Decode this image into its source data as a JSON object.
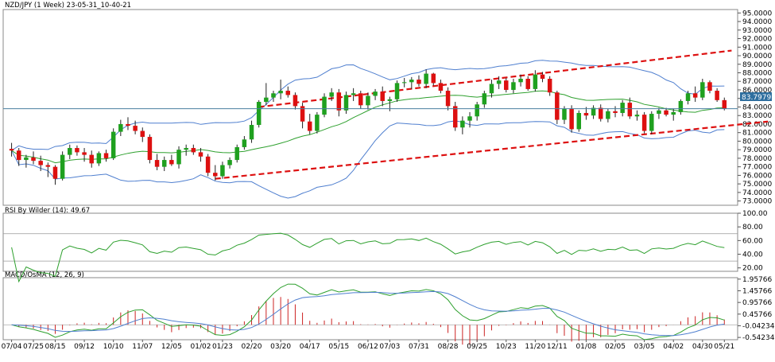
{
  "header": {
    "main_title": "NZD/JPY (1 Week) 23-05-31_10-40-21",
    "rsi_title": "RSI By Wilder (14): 49.67",
    "macd_title": "MACD/OsMA (12, 26, 9)",
    "current_price_label": "83.7979"
  },
  "colors": {
    "bull_candle": "#1fa01f",
    "bear_candle": "#dd1010",
    "bollinger": "#4f7fcf",
    "bollinger_mid": "#2ea02e",
    "trendline": "#dd1010",
    "price_line": "#4a7fa0",
    "rsi_line": "#2ea02e",
    "macd_line": "#2ea02e",
    "signal_line": "#4f7fcf",
    "histogram": "#cc2222"
  },
  "chart_data": [
    {
      "type": "candlestick",
      "y_ticks": [
        "95.0000",
        "94.0000",
        "93.0000",
        "92.0000",
        "91.0000",
        "90.0000",
        "89.0000",
        "88.0000",
        "87.0000",
        "86.0000",
        "85.0000",
        "84.0000",
        "83.0000",
        "82.0000",
        "81.0000",
        "80.0000",
        "79.0000",
        "78.0000",
        "77.0000",
        "76.0000",
        "75.0000",
        "74.0000",
        "73.0000"
      ],
      "ylim": [
        72.5,
        95.4
      ],
      "current_price": 83.7979,
      "x_tick_labels": [
        "07/04",
        "07/25",
        "08/15",
        "09/12",
        "10/10",
        "11/07",
        "12/05",
        "01/02",
        "01/23",
        "02/20",
        "03/20",
        "04/17",
        "05/15",
        "06/12",
        "07/03",
        "07/31",
        "08/28",
        "09/25",
        "10/23",
        "11/20",
        "12/11",
        "01/08",
        "02/05",
        "03/05",
        "04/02",
        "04/30",
        "05/21"
      ],
      "x_tick_index": [
        0,
        3,
        6,
        10,
        14,
        18,
        22,
        26,
        29,
        33,
        37,
        41,
        45,
        49,
        52,
        56,
        60,
        64,
        68,
        72,
        75,
        79,
        83,
        87,
        91,
        95,
        98
      ],
      "candles": [
        [
          79.1,
          79.8,
          78.2,
          78.9
        ],
        [
          78.9,
          79.2,
          77.1,
          77.8
        ],
        [
          77.8,
          78.4,
          76.9,
          78.1
        ],
        [
          78.1,
          78.8,
          77.3,
          77.7
        ],
        [
          77.7,
          78.3,
          76.5,
          77.2
        ],
        [
          77.2,
          77.5,
          75.8,
          77.0
        ],
        [
          77.0,
          77.2,
          74.9,
          75.6
        ],
        [
          75.6,
          78.8,
          75.4,
          78.4
        ],
        [
          78.4,
          79.6,
          77.9,
          79.2
        ],
        [
          79.2,
          79.5,
          78.3,
          78.7
        ],
        [
          78.7,
          79.2,
          77.6,
          78.4
        ],
        [
          78.4,
          78.9,
          76.9,
          77.4
        ],
        [
          77.4,
          78.8,
          77.1,
          78.6
        ],
        [
          78.6,
          79.0,
          77.6,
          78.0
        ],
        [
          78.0,
          81.5,
          77.8,
          81.1
        ],
        [
          81.1,
          82.5,
          80.6,
          82.0
        ],
        [
          82.0,
          82.8,
          81.3,
          81.8
        ],
        [
          81.8,
          82.4,
          80.8,
          81.2
        ],
        [
          81.2,
          81.6,
          79.9,
          80.5
        ],
        [
          80.5,
          80.8,
          77.4,
          77.8
        ],
        [
          77.8,
          78.5,
          76.6,
          77.0
        ],
        [
          77.0,
          78.2,
          76.5,
          77.8
        ],
        [
          77.8,
          78.4,
          77.1,
          77.3
        ],
        [
          77.3,
          79.4,
          76.8,
          79.0
        ],
        [
          79.0,
          79.6,
          78.3,
          79.2
        ],
        [
          79.2,
          79.6,
          78.4,
          78.7
        ],
        [
          78.7,
          79.2,
          77.6,
          78.2
        ],
        [
          78.2,
          78.5,
          75.9,
          76.3
        ],
        [
          76.3,
          77.2,
          75.4,
          75.9
        ],
        [
          75.9,
          77.6,
          75.6,
          77.2
        ],
        [
          77.2,
          78.1,
          76.8,
          77.8
        ],
        [
          77.8,
          79.6,
          77.5,
          79.3
        ],
        [
          79.3,
          80.6,
          79.0,
          80.2
        ],
        [
          80.2,
          82.4,
          79.8,
          81.9
        ],
        [
          81.9,
          84.8,
          81.6,
          84.6
        ],
        [
          84.6,
          86.8,
          84.2,
          85.1
        ],
        [
          85.1,
          85.9,
          84.6,
          85.6
        ],
        [
          85.6,
          87.2,
          84.9,
          85.9
        ],
        [
          85.9,
          86.4,
          85.1,
          85.4
        ],
        [
          85.4,
          85.7,
          83.7,
          84.1
        ],
        [
          84.1,
          84.5,
          81.5,
          82.3
        ],
        [
          82.3,
          83.2,
          80.8,
          81.2
        ],
        [
          81.2,
          83.4,
          80.9,
          83.1
        ],
        [
          83.1,
          85.6,
          82.8,
          85.2
        ],
        [
          85.2,
          86.2,
          84.7,
          85.7
        ],
        [
          85.7,
          86.1,
          82.9,
          83.6
        ],
        [
          83.6,
          85.8,
          83.2,
          85.4
        ],
        [
          85.4,
          86.2,
          84.7,
          85.6
        ],
        [
          85.6,
          85.9,
          83.8,
          84.2
        ],
        [
          84.2,
          85.7,
          83.7,
          85.3
        ],
        [
          85.3,
          86.1,
          84.8,
          85.8
        ],
        [
          85.8,
          86.4,
          84.1,
          84.7
        ],
        [
          84.7,
          85.2,
          83.5,
          84.9
        ],
        [
          84.9,
          87.1,
          84.6,
          86.8
        ],
        [
          86.8,
          87.4,
          86.3,
          86.9
        ],
        [
          86.9,
          87.5,
          86.1,
          87.2
        ],
        [
          87.2,
          87.7,
          86.4,
          86.7
        ],
        [
          86.7,
          88.4,
          86.2,
          87.9
        ],
        [
          87.9,
          88.0,
          86.5,
          86.8
        ],
        [
          86.8,
          87.2,
          85.6,
          85.9
        ],
        [
          85.9,
          86.3,
          83.6,
          84.1
        ],
        [
          84.1,
          84.6,
          81.2,
          81.6
        ],
        [
          81.6,
          82.9,
          80.8,
          82.4
        ],
        [
          82.4,
          83.4,
          81.6,
          82.9
        ],
        [
          82.9,
          84.6,
          82.4,
          84.3
        ],
        [
          84.3,
          85.9,
          83.9,
          85.6
        ],
        [
          85.6,
          87.2,
          85.1,
          86.7
        ],
        [
          86.7,
          87.6,
          86.1,
          87.1
        ],
        [
          87.1,
          87.4,
          85.7,
          86.0
        ],
        [
          86.0,
          87.3,
          85.6,
          86.9
        ],
        [
          86.9,
          87.8,
          86.4,
          87.3
        ],
        [
          87.3,
          87.6,
          85.9,
          86.1
        ],
        [
          86.1,
          88.3,
          85.8,
          87.8
        ],
        [
          87.8,
          88.1,
          86.9,
          87.3
        ],
        [
          87.3,
          87.6,
          85.3,
          85.7
        ],
        [
          85.7,
          85.9,
          82.0,
          82.5
        ],
        [
          82.5,
          84.1,
          82.0,
          83.8
        ],
        [
          83.8,
          84.2,
          81.0,
          81.4
        ],
        [
          81.4,
          83.6,
          81.1,
          83.3
        ],
        [
          83.3,
          84.0,
          82.5,
          83.0
        ],
        [
          83.0,
          84.2,
          82.6,
          83.9
        ],
        [
          83.9,
          84.3,
          82.3,
          82.6
        ],
        [
          82.6,
          83.8,
          82.2,
          83.5
        ],
        [
          83.5,
          84.1,
          82.8,
          83.3
        ],
        [
          83.3,
          84.8,
          82.9,
          84.5
        ],
        [
          84.5,
          85.1,
          82.6,
          82.9
        ],
        [
          82.9,
          83.6,
          82.4,
          83.1
        ],
        [
          83.1,
          83.4,
          80.9,
          81.2
        ],
        [
          81.2,
          83.5,
          80.8,
          83.2
        ],
        [
          83.2,
          83.9,
          82.6,
          83.6
        ],
        [
          83.6,
          83.9,
          82.9,
          83.1
        ],
        [
          83.1,
          83.8,
          82.4,
          83.4
        ],
        [
          83.4,
          84.9,
          83.1,
          84.7
        ],
        [
          84.7,
          85.9,
          84.3,
          85.6
        ],
        [
          85.6,
          86.4,
          84.6,
          85.1
        ],
        [
          85.1,
          87.3,
          84.8,
          86.9
        ],
        [
          86.9,
          87.1,
          85.6,
          85.9
        ],
        [
          85.9,
          86.2,
          84.6,
          84.8
        ],
        [
          84.8,
          85.1,
          83.6,
          83.8
        ]
      ]
    },
    {
      "type": "line",
      "title": "RSI By Wilder (14): 49.67",
      "y_ticks": [
        "100.00",
        "80.00",
        "60.00",
        "40.00",
        "20.00"
      ],
      "ylim": [
        15,
        100
      ],
      "reference_levels": [
        70,
        30
      ],
      "last_value": 49.67
    },
    {
      "type": "line+bar",
      "title": "MACD/OsMA (12, 26, 9)",
      "y_ticks": [
        "1.95766",
        "1.45766",
        "0.95766",
        "0.45766",
        "-0.04234",
        "-0.54234"
      ],
      "ylim": [
        -0.64,
        2.02
      ]
    }
  ]
}
